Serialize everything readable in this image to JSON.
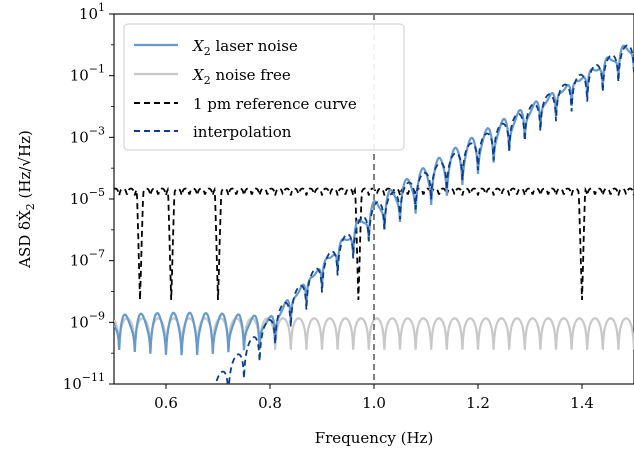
{
  "chart_data": {
    "type": "line",
    "xlabel": "Frequency (Hz)",
    "ylabel_prefix": "ASD δẊ",
    "ylabel_sub": "2",
    "ylabel_units": "(Hz/√Hz)",
    "x_range": [
      0.5,
      1.5
    ],
    "y_range_log10": [
      -11,
      1
    ],
    "y_scale": "log",
    "x_ticks": [
      0.6,
      0.8,
      1.0,
      1.2,
      1.4
    ],
    "x_tick_labels": [
      "0.6",
      "0.8",
      "1.0",
      "1.2",
      "1.4"
    ],
    "y_ticks": [
      {
        "base": "10",
        "exp": "1",
        "value": 1
      },
      {
        "base": "10",
        "exp": "−1",
        "value": -1
      },
      {
        "base": "10",
        "exp": "−3",
        "value": -3
      },
      {
        "base": "10",
        "exp": "−5",
        "value": -5
      },
      {
        "base": "10",
        "exp": "−7",
        "value": -7
      },
      {
        "base": "10",
        "exp": "−9",
        "value": -9
      },
      {
        "base": "10",
        "exp": "−11",
        "value": -11
      }
    ],
    "vertical_marker": {
      "x": 1.0,
      "style": "dashed",
      "color": "#808080"
    },
    "legend_position": "top-left",
    "series": [
      {
        "name_main": "X",
        "name_sub": "2",
        "name_rest": " laser noise",
        "color": "#6699cc",
        "style": "solid"
      },
      {
        "name_main": "X",
        "name_sub": "2",
        "name_rest": " noise free",
        "color": "#c8c8c8",
        "style": "solid"
      },
      {
        "name_main": "1 pm reference curve",
        "name_sub": "",
        "name_rest": "",
        "color": "#000000",
        "style": "dashed"
      },
      {
        "name_main": "interpolation",
        "name_sub": "",
        "name_rest": "",
        "color": "#0b3d8c",
        "style": "dashed"
      }
    ],
    "approx_levels_log10": {
      "noise_free_floor": -8.9,
      "reference_floor": -4.7,
      "laser_noise_at_0_5": -8.9,
      "laser_noise_at_1_0": -5.2,
      "laser_noise_at_1_5": 0.1
    },
    "reference_null_frequencies": [
      0.55,
      0.61,
      0.7,
      0.97,
      1.4
    ]
  }
}
